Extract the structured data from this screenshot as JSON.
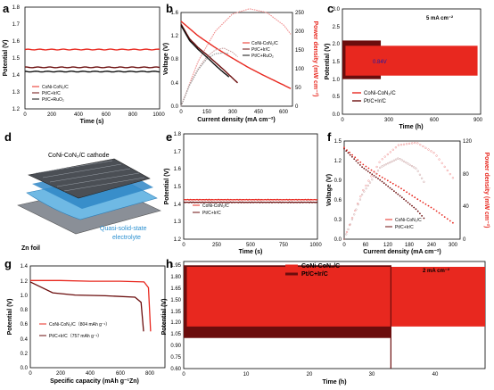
{
  "colors": {
    "red": "#e8281f",
    "darkred": "#6b0d0d",
    "black": "#111111",
    "pink": "#f08a8a"
  },
  "chart_data": [
    {
      "panel": "a",
      "type": "line",
      "xlabel": "Time (s)",
      "ylabel": "Potential (V)",
      "xlim": [
        0,
        1000
      ],
      "ylim": [
        1.2,
        1.8
      ],
      "xticks": [
        "0",
        "200",
        "400",
        "600",
        "800",
        "1000"
      ],
      "yticks": [
        "1.2",
        "1.3",
        "1.4",
        "1.5",
        "1.6",
        "1.7",
        "1.8"
      ],
      "series": [
        {
          "name": "CoNi-CoN₂/C",
          "values": [
            1.55
          ]
        },
        {
          "name": "Pt/C+Ir/C",
          "values": [
            1.445
          ]
        },
        {
          "name": "Pt/C+RuO₂",
          "values": [
            1.42
          ]
        }
      ]
    },
    {
      "panel": "b",
      "type": "line",
      "xlabel": "Current density (mA cm⁻²)",
      "ylabel": "Voltage (V)",
      "y2label": "Power density (mW cm⁻²)",
      "xlim": [
        0,
        650
      ],
      "ylim": [
        0,
        1.6
      ],
      "y2lim": [
        0,
        250
      ],
      "xticks": [
        "0",
        "150",
        "300",
        "450",
        "600"
      ],
      "yticks": [
        "0.0",
        "0.4",
        "0.8",
        "1.2",
        "1.6"
      ],
      "y2ticks": [
        "0",
        "50",
        "100",
        "150",
        "200",
        "250"
      ],
      "series": [
        {
          "name": "CoNi-CoN₂/C",
          "x": [
            0,
            100,
            200,
            300,
            400,
            500,
            600,
            640
          ],
          "voltage": [
            1.45,
            1.2,
            1.0,
            0.82,
            0.65,
            0.5,
            0.36,
            0.3
          ],
          "power": [
            0,
            120,
            200,
            246,
            260,
            250,
            216,
            192
          ]
        },
        {
          "name": "Pt/C+Ir/C",
          "x": [
            0,
            50,
            100,
            150,
            200,
            250,
            300,
            330
          ],
          "voltage": [
            1.4,
            1.15,
            1.0,
            0.88,
            0.75,
            0.62,
            0.48,
            0.4
          ],
          "power": [
            0,
            58,
            100,
            132,
            150,
            155,
            144,
            132
          ]
        },
        {
          "name": "Pt/C+RuO₂",
          "x": [
            0,
            50,
            100,
            150,
            200,
            250,
            280
          ],
          "voltage": [
            1.38,
            1.12,
            0.97,
            0.84,
            0.7,
            0.57,
            0.5
          ],
          "power": [
            0,
            56,
            97,
            126,
            140,
            142,
            140
          ]
        }
      ]
    },
    {
      "panel": "c",
      "type": "line",
      "annotation": "5 mA cm⁻²",
      "inner_label": "0.84V",
      "xlabel": "Time (h)",
      "ylabel": "Potential (V)",
      "xlim": [
        0,
        900
      ],
      "ylim": [
        0,
        3.0
      ],
      "xticks": [
        "0",
        "300",
        "600",
        "900"
      ],
      "yticks": [
        "0.0",
        "0.5",
        "1.0",
        "1.5",
        "2.0",
        "2.5",
        "3.0"
      ],
      "series": [
        {
          "name": "CoNi-CoN₂/C",
          "charge": 1.95,
          "discharge": 1.1
        },
        {
          "name": "Pt/C+Ir/C",
          "charge": 2.1,
          "discharge": 1.0
        }
      ]
    },
    {
      "panel": "e",
      "type": "line",
      "xlabel": "Time (s)",
      "ylabel": "Potential (V)",
      "xlim": [
        0,
        1000
      ],
      "ylim": [
        1.2,
        1.8
      ],
      "xticks": [
        "0",
        "250",
        "500",
        "750",
        "1000"
      ],
      "yticks": [
        "1.2",
        "1.3",
        "1.4",
        "1.5",
        "1.6",
        "1.7",
        "1.8"
      ],
      "series": [
        {
          "name": "CoNi-CoN₂/C",
          "values": [
            1.425
          ]
        },
        {
          "name": "Pt/C+Ir/C",
          "values": [
            1.41
          ]
        }
      ]
    },
    {
      "panel": "f",
      "type": "line",
      "xlabel": "Current density (mA cm⁻²)",
      "ylabel": "Voltage (V)",
      "y2label": "Power density (mW cm⁻²)",
      "xlim": [
        0,
        320
      ],
      "ylim": [
        0,
        1.5
      ],
      "y2lim": [
        0,
        120
      ],
      "xticks": [
        "0",
        "60",
        "120",
        "180",
        "240",
        "300"
      ],
      "yticks": [
        "0.0",
        "0.3",
        "0.6",
        "0.9",
        "1.2",
        "1.5"
      ],
      "y2ticks": [
        "0",
        "40",
        "80",
        "120"
      ],
      "series": [
        {
          "name": "CoNi-CoN₂/C",
          "x": [
            0,
            50,
            100,
            150,
            200,
            250,
            300
          ],
          "voltage": [
            1.4,
            1.15,
            0.96,
            0.8,
            0.62,
            0.45,
            0.25
          ],
          "power": [
            0,
            58,
            96,
            115,
            118,
            105,
            75
          ]
        },
        {
          "name": "Pt/C+Ir/C",
          "x": [
            0,
            50,
            100,
            150,
            200,
            220
          ],
          "voltage": [
            1.38,
            1.1,
            0.9,
            0.68,
            0.45,
            0.32
          ],
          "power": [
            0,
            55,
            88,
            99,
            86,
            70
          ]
        }
      ]
    },
    {
      "panel": "g",
      "type": "line",
      "xlabel": "Specific capacity (mAh g⁻¹Zn)",
      "ylabel": "Potential (V)",
      "xlim": [
        0,
        900
      ],
      "ylim": [
        0,
        1.4
      ],
      "xticks": [
        "0",
        "200",
        "400",
        "600",
        "800"
      ],
      "yticks": [
        "0.0",
        "0.2",
        "0.4",
        "0.6",
        "0.8",
        "1.0",
        "1.2",
        "1.4"
      ],
      "series": [
        {
          "name": "CoNi-CoN₂/C（804 mAh g⁻¹）",
          "x": [
            0,
            200,
            400,
            600,
            760,
            790,
            804
          ],
          "y": [
            1.2,
            1.2,
            1.19,
            1.19,
            1.18,
            1.1,
            0.5
          ]
        },
        {
          "name": "Pt/C+Ir/C（757 mAh g⁻¹）",
          "x": [
            0,
            60,
            150,
            300,
            500,
            700,
            740,
            757
          ],
          "y": [
            1.18,
            1.12,
            1.03,
            1.0,
            0.99,
            0.97,
            0.9,
            0.5
          ]
        }
      ]
    },
    {
      "panel": "h",
      "type": "line",
      "annotation": "2 mA cm⁻²",
      "xlabel": "Time (h)",
      "ylabel": "Potential (V)",
      "xlim": [
        0,
        48
      ],
      "ylim": [
        0.6,
        2.0
      ],
      "xticks": [
        "0",
        "10",
        "20",
        "30",
        "40"
      ],
      "yticks": [
        "0.60",
        "0.75",
        "0.90",
        "1.05",
        "1.20",
        "1.35",
        "1.50",
        "1.65",
        "1.80",
        "1.95"
      ],
      "series": [
        {
          "name": "CoNi-CoN₂/C",
          "charge": 1.93,
          "discharge": 1.15,
          "end_h": 48
        },
        {
          "name": "Pt/C+Ir/C",
          "charge": 1.95,
          "discharge": 1.0,
          "end_h": 33
        }
      ]
    }
  ],
  "panel_d": {
    "letter": "d",
    "cathode_label": "CoNi-CoN₂/C cathode",
    "anode_label": "Zn foil",
    "electrolyte_label": [
      "Quasi-solid-state",
      "electrolyte"
    ]
  },
  "panel_letters": [
    "a",
    "b",
    "c",
    "e",
    "f",
    "g",
    "h"
  ]
}
